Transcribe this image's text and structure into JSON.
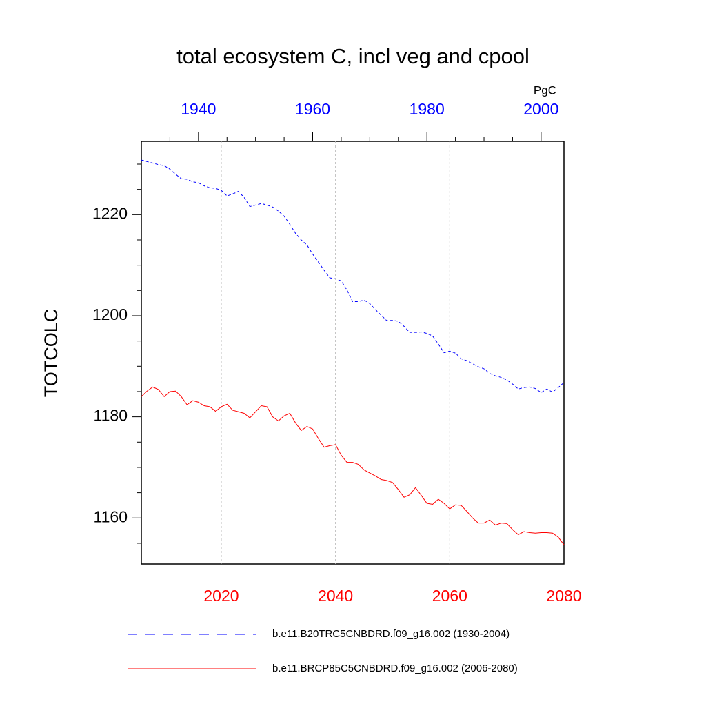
{
  "chart_data": {
    "type": "line",
    "title": "total ecosystem C, incl veg and cpool",
    "ylabel": "TOTCOLC",
    "units": "PgC",
    "xlim": [
      2006,
      2080
    ],
    "xticks": [
      2020,
      2040,
      2060,
      2080
    ],
    "x2lim": [
      1930,
      2004
    ],
    "x2ticks": [
      1940,
      1960,
      1980,
      2000
    ],
    "x2minor_ticks": [
      1935,
      1945,
      1950,
      1955,
      1965,
      1970,
      1975,
      1985,
      1990,
      1995
    ],
    "ylim": [
      1150.9,
      1234.5
    ],
    "yticks": [
      1160,
      1180,
      1200,
      1220
    ],
    "yminor_ticks": [
      1155,
      1165,
      1170,
      1175,
      1185,
      1190,
      1195,
      1205,
      1210,
      1215,
      1225,
      1230
    ],
    "grid": "x",
    "series": [
      {
        "name": "b.e11.B20TRC5CNBDRD.f09_g16.002 (1930-2004)",
        "color": "#0000ff",
        "dash": true,
        "axis": "x2",
        "x": [
          1930,
          1931,
          1932,
          1933,
          1934,
          1935,
          1936,
          1937,
          1938,
          1939,
          1940,
          1941,
          1942,
          1943,
          1944,
          1945,
          1946,
          1947,
          1948,
          1949,
          1950,
          1951,
          1952,
          1953,
          1954,
          1955,
          1956,
          1957,
          1958,
          1959,
          1960,
          1961,
          1962,
          1963,
          1964,
          1965,
          1966,
          1967,
          1968,
          1969,
          1970,
          1971,
          1972,
          1973,
          1974,
          1975,
          1976,
          1977,
          1978,
          1979,
          1980,
          1981,
          1982,
          1983,
          1984,
          1985,
          1986,
          1987,
          1988,
          1989,
          1990,
          1991,
          1992,
          1993,
          1994,
          1995,
          1996,
          1997,
          1998,
          1999,
          2000,
          2001,
          2002,
          2003,
          2004
        ],
        "values": [
          1230.8,
          1230.5,
          1230.2,
          1229.9,
          1229.7,
          1229.0,
          1228.0,
          1227.1,
          1227.0,
          1226.5,
          1226.3,
          1225.7,
          1225.3,
          1225.2,
          1224.8,
          1223.7,
          1224.1,
          1224.6,
          1223.4,
          1221.6,
          1221.9,
          1222.2,
          1221.9,
          1221.5,
          1220.7,
          1219.7,
          1218.1,
          1216.3,
          1215.0,
          1214.0,
          1212.2,
          1210.6,
          1209.0,
          1207.5,
          1207.3,
          1206.9,
          1205.1,
          1202.8,
          1202.8,
          1203.1,
          1202.4,
          1201.2,
          1200.1,
          1199.0,
          1199.1,
          1198.9,
          1197.9,
          1196.7,
          1196.7,
          1196.8,
          1196.5,
          1196.0,
          1194.4,
          1192.7,
          1193.0,
          1192.6,
          1191.5,
          1191.1,
          1190.5,
          1189.9,
          1189.5,
          1188.6,
          1188.1,
          1187.8,
          1187.3,
          1186.5,
          1185.5,
          1185.8,
          1185.9,
          1185.6,
          1184.8,
          1185.5,
          1184.9,
          1185.8,
          1186.8
        ]
      },
      {
        "name": "b.e11.BRCP85C5CNBDRD.f09_g16.002 (2006-2080)",
        "color": "#ff0000",
        "dash": false,
        "x": [
          2006,
          2007,
          2008,
          2009,
          2010,
          2011,
          2012,
          2013,
          2014,
          2015,
          2016,
          2017,
          2018,
          2019,
          2020,
          2021,
          2022,
          2023,
          2024,
          2025,
          2026,
          2027,
          2028,
          2029,
          2030,
          2031,
          2032,
          2033,
          2034,
          2035,
          2036,
          2037,
          2038,
          2039,
          2040,
          2041,
          2042,
          2043,
          2044,
          2045,
          2046,
          2047,
          2048,
          2049,
          2050,
          2051,
          2052,
          2053,
          2054,
          2055,
          2056,
          2057,
          2058,
          2059,
          2060,
          2061,
          2062,
          2063,
          2064,
          2065,
          2066,
          2067,
          2068,
          2069,
          2070,
          2071,
          2072,
          2073,
          2074,
          2075,
          2076,
          2077,
          2078,
          2079,
          2080
        ],
        "values": [
          1184.0,
          1185.1,
          1185.9,
          1185.4,
          1184.0,
          1185.0,
          1185.1,
          1184.0,
          1182.4,
          1183.2,
          1182.9,
          1182.2,
          1182.0,
          1181.1,
          1182.0,
          1182.5,
          1181.3,
          1181.0,
          1180.7,
          1179.8,
          1181.0,
          1182.2,
          1182.0,
          1180.0,
          1179.2,
          1180.2,
          1180.7,
          1178.8,
          1177.3,
          1178.1,
          1177.6,
          1175.7,
          1174.0,
          1174.3,
          1174.5,
          1172.4,
          1171.0,
          1171.0,
          1170.6,
          1169.5,
          1168.9,
          1168.3,
          1167.6,
          1167.4,
          1167.0,
          1165.6,
          1164.1,
          1164.6,
          1166.0,
          1164.5,
          1162.9,
          1162.7,
          1163.7,
          1162.9,
          1161.8,
          1162.6,
          1162.5,
          1161.3,
          1160.0,
          1159.0,
          1159.0,
          1159.6,
          1158.6,
          1159.0,
          1158.9,
          1157.7,
          1156.7,
          1157.3,
          1157.1,
          1157.0,
          1157.1,
          1157.1,
          1157.0,
          1156.2,
          1154.7
        ]
      }
    ]
  }
}
